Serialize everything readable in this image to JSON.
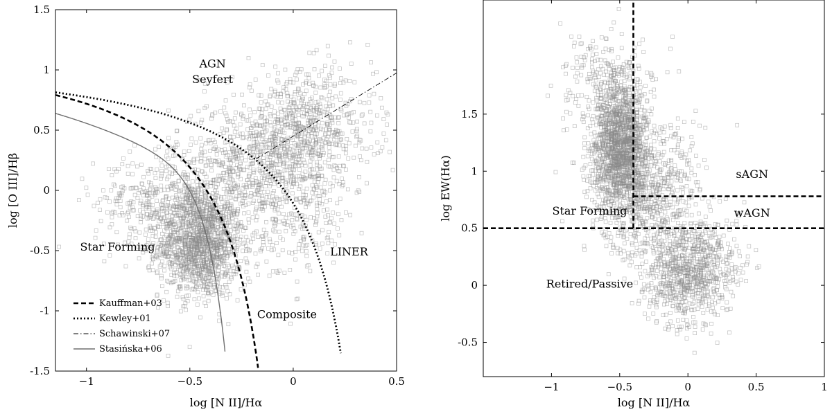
{
  "chart_data": [
    {
      "type": "scatter",
      "xlabel": "log [N II]/Hα",
      "ylabel": "log [O III]/Hβ",
      "xlim": [
        -1.15,
        0.5
      ],
      "ylim": [
        -1.5,
        1.5
      ],
      "xticks": [
        -1,
        -0.5,
        0,
        0.5
      ],
      "xtick_labels": [
        "−1",
        "−0.5",
        "0",
        "0.5"
      ],
      "yticks": [
        -1.5,
        -1,
        -0.5,
        0,
        0.5,
        1,
        1.5
      ],
      "ytick_labels": [
        "-1.5",
        "-1",
        "-0.5",
        "0",
        "0.5",
        "1",
        "1.5"
      ],
      "grid": false,
      "legend_position": "bottom-left",
      "region_labels": [
        {
          "text": "AGN",
          "x": -0.39,
          "y": 1.02
        },
        {
          "text": "Seyfert",
          "x": -0.39,
          "y": 0.89
        },
        {
          "text": "Star Forming",
          "x": -0.85,
          "y": -0.5
        },
        {
          "text": "LINER",
          "x": 0.27,
          "y": -0.54
        },
        {
          "text": "Composite",
          "x": -0.03,
          "y": -1.06
        }
      ],
      "series": [
        {
          "name": "Kauffman+03",
          "style": "dashed",
          "formula": "0.61/(x-0.05)+1.3",
          "x_range": [
            -1.15,
            -0.17
          ]
        },
        {
          "name": "Kewley+01",
          "style": "dotted",
          "formula": "0.61/(x-0.47)+1.19",
          "x_range": [
            -1.15,
            0.23
          ]
        },
        {
          "name": "Schawinski+07",
          "style": "dash-dot",
          "formula": "1.05*x+0.45",
          "x_range": [
            -0.18,
            0.5
          ]
        },
        {
          "name": "Stasińska+06",
          "style": "solid",
          "formula": "(-30.787+1.1358*x+0.27297*x^2)*tanh(5.7409*x)-31.093",
          "x_range": [
            -1.15,
            -0.33
          ]
        }
      ],
      "scatter_clusters": [
        {
          "center": [
            -0.45,
            -0.45
          ],
          "spread": [
            0.1,
            0.22
          ],
          "count": 1250
        },
        {
          "center": [
            -0.6,
            -0.1
          ],
          "spread": [
            0.18,
            0.2
          ],
          "count": 450
        },
        {
          "center": [
            -0.2,
            0.2
          ],
          "spread": [
            0.2,
            0.25
          ],
          "count": 550
        },
        {
          "center": [
            0.05,
            0.5
          ],
          "spread": [
            0.17,
            0.25
          ],
          "count": 700
        },
        {
          "center": [
            -0.05,
            -0.25
          ],
          "spread": [
            0.18,
            0.25
          ],
          "count": 250
        }
      ]
    },
    {
      "type": "scatter",
      "xlabel": "log [N II]/Hα",
      "ylabel": "log EW(Hα)",
      "xlim": [
        -1.5,
        1.0
      ],
      "ylim": [
        -0.8,
        2.5
      ],
      "xticks": [
        -1,
        -0.5,
        0,
        0.5,
        1
      ],
      "xtick_labels": [
        "−1",
        "−0.5",
        "0",
        "0.5",
        "1"
      ],
      "yticks": [
        -0.5,
        0,
        0.5,
        1,
        1.5
      ],
      "ytick_labels": [
        "-0.5",
        "0",
        "0.5",
        "1",
        "1.5"
      ],
      "grid": false,
      "region_labels": [
        {
          "text": "sAGN",
          "x": 0.47,
          "y": 0.94
        },
        {
          "text": "wAGN",
          "x": 0.47,
          "y": 0.6
        },
        {
          "text": "Star Forming",
          "x": -0.72,
          "y": 0.62
        },
        {
          "text": "Retired/Passive",
          "x": -0.72,
          "y": -0.02
        }
      ],
      "boundaries": [
        {
          "style": "dashed",
          "kind": "vertical",
          "x": -0.4,
          "y_range": [
            0.5,
            2.5
          ]
        },
        {
          "style": "dashed",
          "kind": "horizontal",
          "y": 0.5,
          "x_range": [
            -1.5,
            1.0
          ]
        },
        {
          "style": "dashed",
          "kind": "horizontal",
          "y": 0.78,
          "x_range": [
            -0.4,
            1.0
          ]
        }
      ],
      "scatter_clusters": [
        {
          "center": [
            -0.5,
            1.25
          ],
          "spread": [
            0.1,
            0.28
          ],
          "count": 1400
        },
        {
          "center": [
            -0.3,
            0.85
          ],
          "spread": [
            0.2,
            0.3
          ],
          "count": 700
        },
        {
          "center": [
            0.0,
            0.15
          ],
          "spread": [
            0.18,
            0.25
          ],
          "count": 900
        },
        {
          "center": [
            -0.6,
            1.8
          ],
          "spread": [
            0.2,
            0.22
          ],
          "count": 200
        }
      ]
    }
  ]
}
